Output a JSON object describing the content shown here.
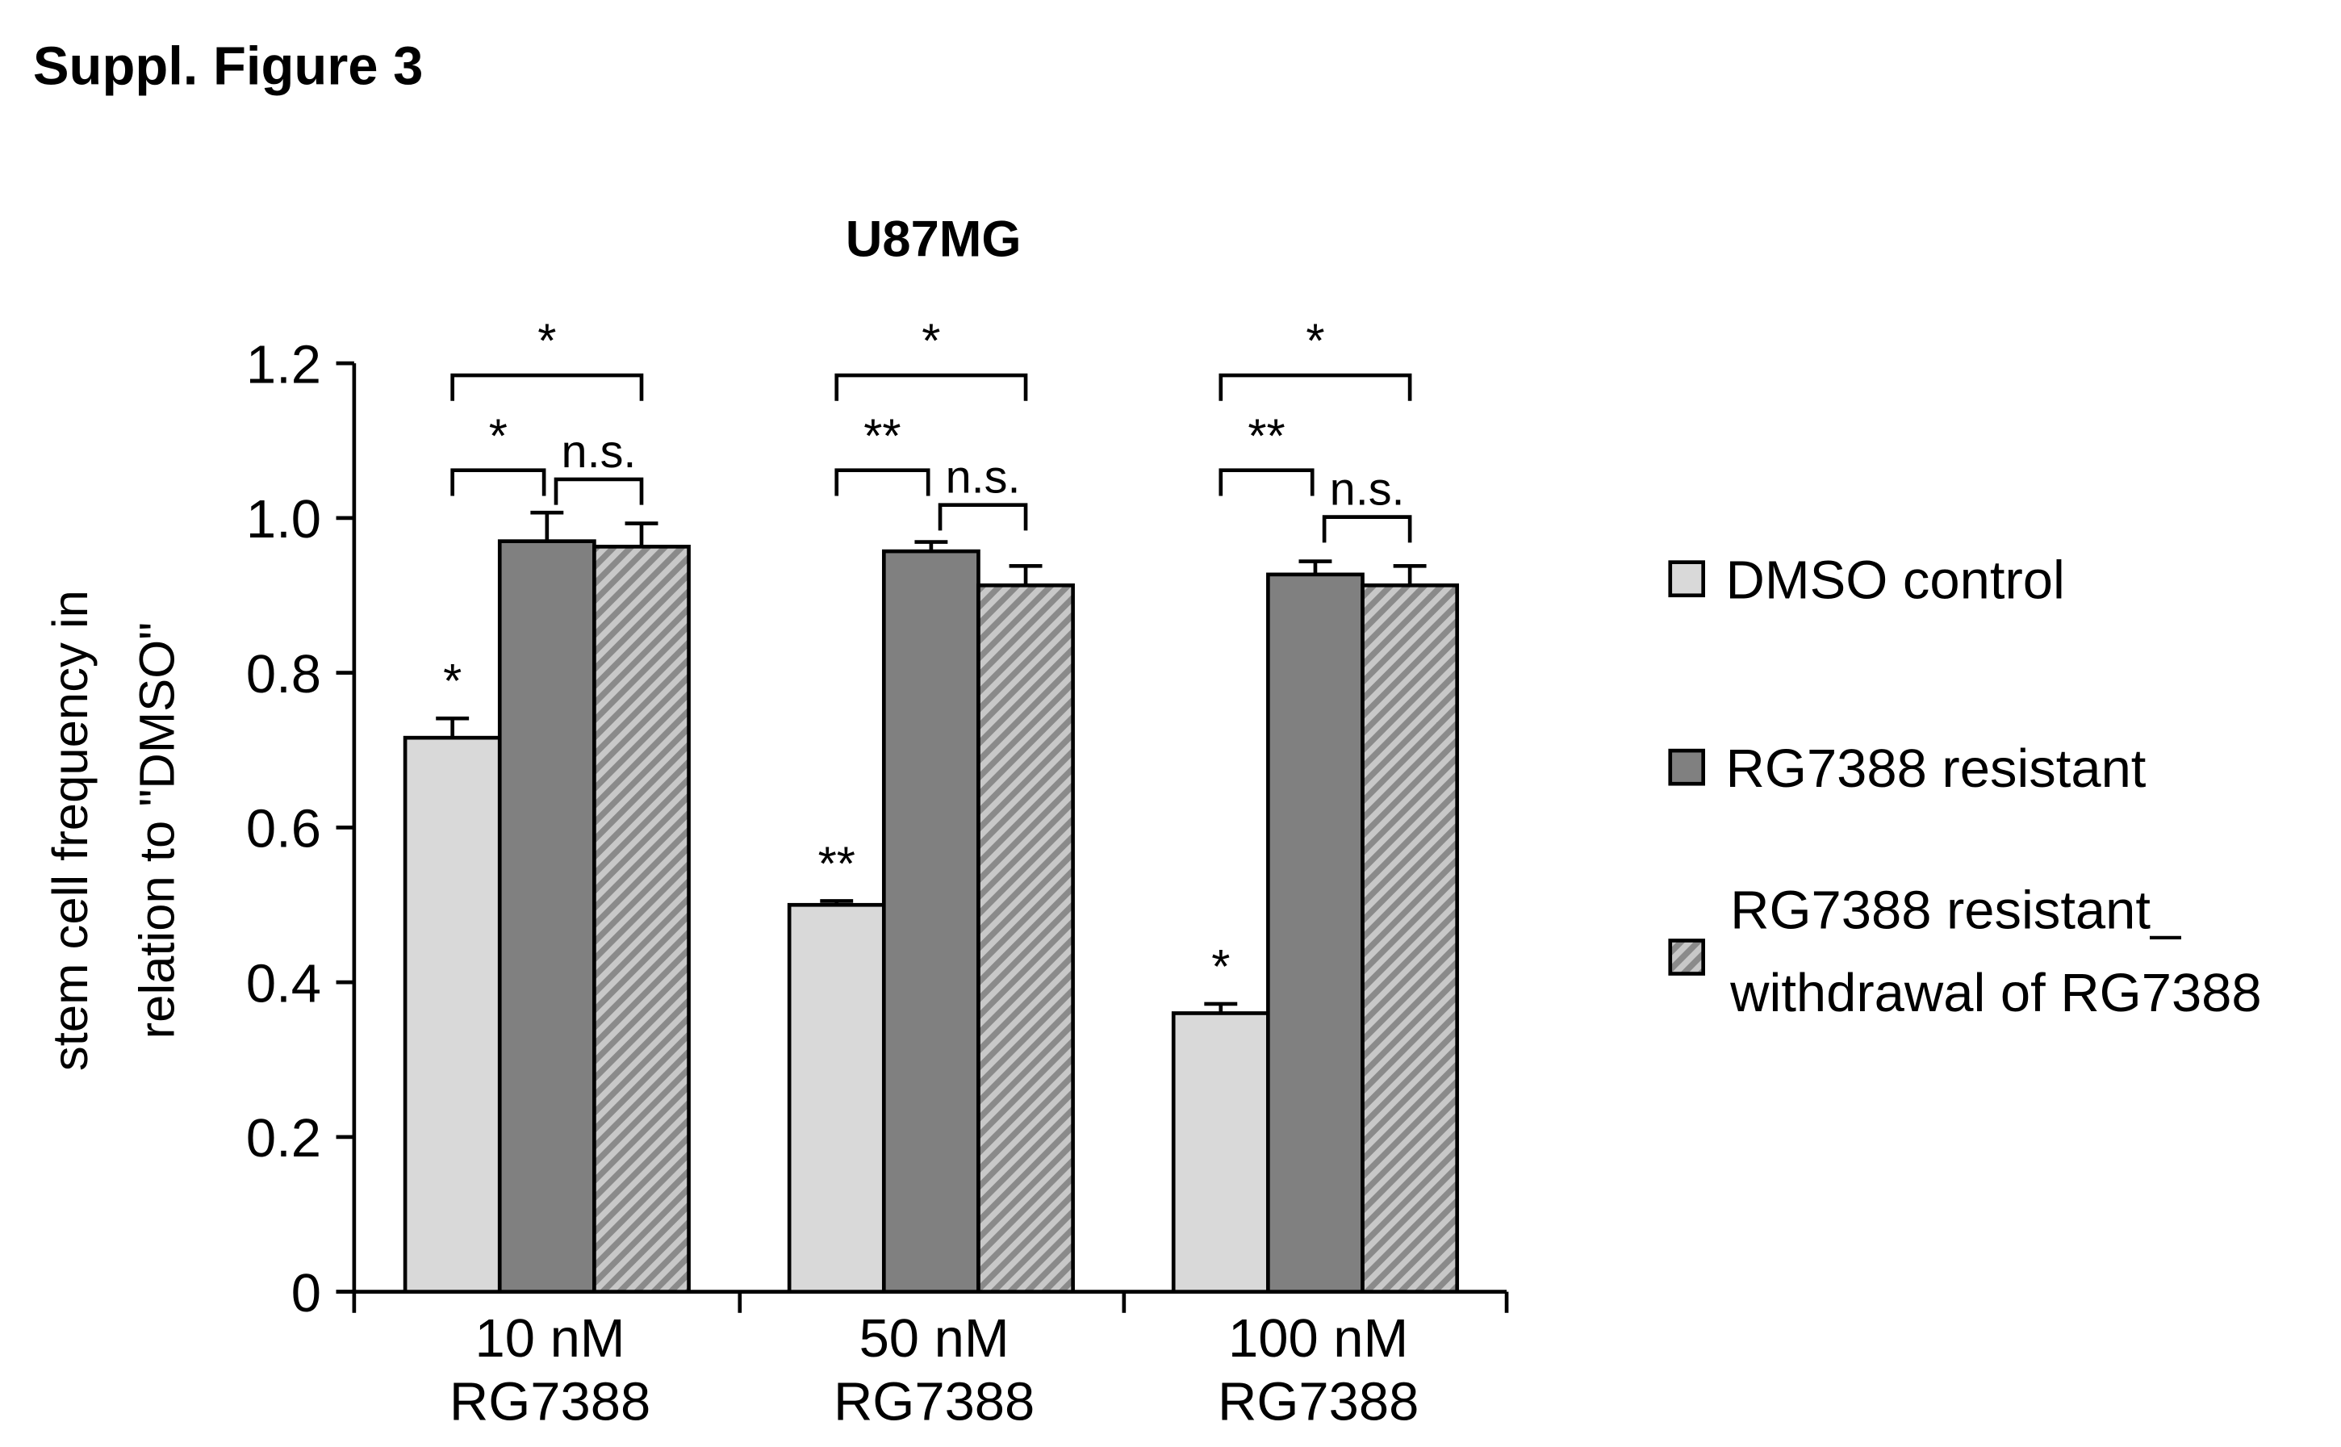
{
  "figure": {
    "label": "Suppl. Figure 3"
  },
  "chart_data": {
    "type": "bar",
    "title": "U87MG",
    "xlabel": "",
    "ylabel": "stem cell frequency in relation to \"DMSO\"",
    "ylabel_lines": [
      "stem cell frequency in",
      "relation to \"DMSO\""
    ],
    "ylim": [
      0,
      1.2
    ],
    "yticks": [
      "0",
      "0.2",
      "0.4",
      "0.6",
      "0.8",
      "1.0",
      "1.2"
    ],
    "grid": false,
    "legend_position": "right",
    "categories": [
      "10 nM RG7388",
      "50 nM RG7388",
      "100 nM RG7388"
    ],
    "category_lines": [
      [
        "10 nM",
        "RG7388"
      ],
      [
        "50 nM",
        "RG7388"
      ],
      [
        "100 nM",
        "RG7388"
      ]
    ],
    "series": [
      {
        "name": "DMSO control",
        "legend_lines": [
          "DMSO control"
        ],
        "color": "#d9d9d9",
        "pattern": "solid",
        "values": [
          0.716,
          0.5,
          0.36
        ],
        "errors": [
          0.025,
          0.005,
          0.012
        ],
        "bar_annotations": [
          "*",
          "**",
          "*"
        ]
      },
      {
        "name": "RG7388 resistant",
        "legend_lines": [
          "RG7388 resistant"
        ],
        "color": "#808080",
        "pattern": "solid",
        "values": [
          0.97,
          0.957,
          0.927
        ],
        "errors": [
          0.037,
          0.012,
          0.017
        ],
        "bar_annotations": [
          "",
          "",
          ""
        ]
      },
      {
        "name": "RG7388 resistant_ withdrawal of RG7388",
        "legend_lines": [
          "RG7388 resistant_",
          "withdrawal of RG7388"
        ],
        "color": "#b0b0b0",
        "pattern": "diagonal-hatch",
        "values": [
          0.963,
          0.913,
          0.913
        ],
        "errors": [
          0.03,
          0.025,
          0.025
        ],
        "bar_annotations": [
          "",
          "",
          ""
        ]
      }
    ],
    "significance_brackets": [
      {
        "category": 0,
        "from_series": 0,
        "to_series": 2,
        "label": "*",
        "level": "top"
      },
      {
        "category": 0,
        "from_series": 0,
        "to_series": 1,
        "label": "*",
        "level": "mid"
      },
      {
        "category": 0,
        "from_series": 1,
        "to_series": 2,
        "label": "n.s.",
        "level": "low"
      },
      {
        "category": 1,
        "from_series": 0,
        "to_series": 2,
        "label": "*",
        "level": "top"
      },
      {
        "category": 1,
        "from_series": 0,
        "to_series": 1,
        "label": "**",
        "level": "mid"
      },
      {
        "category": 1,
        "from_series": 1,
        "to_series": 2,
        "label": "n.s.",
        "level": "low"
      },
      {
        "category": 2,
        "from_series": 0,
        "to_series": 2,
        "label": "*",
        "level": "top"
      },
      {
        "category": 2,
        "from_series": 0,
        "to_series": 1,
        "label": "**",
        "level": "mid"
      },
      {
        "category": 2,
        "from_series": 1,
        "to_series": 2,
        "label": "n.s.",
        "level": "low"
      }
    ]
  }
}
